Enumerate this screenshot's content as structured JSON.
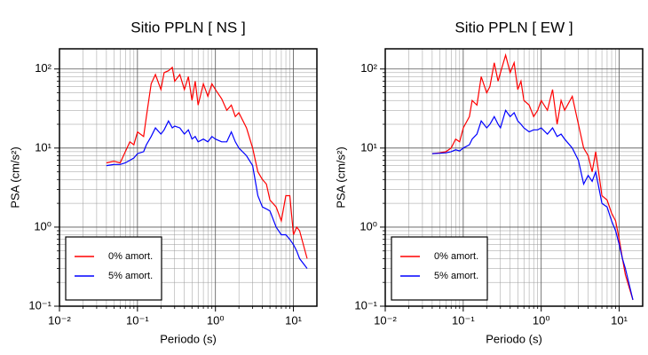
{
  "chart_data": [
    {
      "type": "line",
      "title": "Sitio PPLN [ NS ]",
      "x_label": "Periodo (s)",
      "y_label": "PSA (cm/s²)",
      "xscale": "log",
      "yscale": "log",
      "grid": true,
      "legend": "lower left",
      "xlim": [
        0.01,
        20
      ],
      "ylim": [
        0.1,
        180
      ],
      "xticks": [
        {
          "value": 0.01,
          "label": "10⁻²"
        },
        {
          "value": 0.1,
          "label": "10⁻¹"
        },
        {
          "value": 1,
          "label": "10⁰"
        },
        {
          "value": 10,
          "label": "10¹"
        }
      ],
      "yticks": [
        {
          "value": 0.1,
          "label": "10⁻¹"
        },
        {
          "value": 1,
          "label": "10⁰"
        },
        {
          "value": 10,
          "label": "10¹"
        },
        {
          "value": 100,
          "label": "10²"
        }
      ],
      "x": [
        0.04,
        0.05,
        0.06,
        0.07,
        0.08,
        0.09,
        0.1,
        0.12,
        0.13,
        0.15,
        0.17,
        0.2,
        0.22,
        0.25,
        0.28,
        0.3,
        0.35,
        0.4,
        0.45,
        0.5,
        0.55,
        0.6,
        0.7,
        0.8,
        0.9,
        1.0,
        1.2,
        1.4,
        1.6,
        1.8,
        2.0,
        2.5,
        3.0,
        3.5,
        4,
        4.5,
        5,
        6,
        7,
        8,
        9,
        10,
        11,
        12,
        15
      ],
      "series": [
        {
          "name": "0% amort.",
          "color": "#ff0000",
          "values": [
            6.5,
            6.8,
            6.5,
            9,
            12,
            11,
            16,
            14,
            25,
            65,
            85,
            55,
            90,
            95,
            105,
            70,
            85,
            55,
            80,
            40,
            70,
            35,
            65,
            45,
            65,
            55,
            42,
            30,
            35,
            25,
            28,
            18,
            10,
            5,
            4,
            3.5,
            2.2,
            1.8,
            1.2,
            2.5,
            2.5,
            0.8,
            1.0,
            0.9,
            0.4
          ]
        },
        {
          "name": "5% amort.",
          "color": "#0000ff",
          "values": [
            6,
            6.2,
            6.2,
            6.5,
            7,
            7.5,
            8.5,
            9,
            11,
            14,
            18,
            15,
            17,
            22,
            18,
            19,
            18,
            15,
            17,
            13,
            14,
            12,
            13,
            12,
            14,
            13,
            12,
            12,
            16,
            12,
            10,
            8,
            6,
            2.5,
            1.8,
            1.7,
            1.6,
            1.0,
            0.8,
            0.8,
            0.7,
            0.6,
            0.5,
            0.4,
            0.3
          ]
        }
      ]
    },
    {
      "type": "line",
      "title": "Sitio PPLN [ EW ]",
      "x_label": "Periodo (s)",
      "y_label": "PSA (cm/s²)",
      "xscale": "log",
      "yscale": "log",
      "grid": true,
      "legend": "lower left",
      "xlim": [
        0.01,
        20
      ],
      "ylim": [
        0.1,
        180
      ],
      "xticks": [
        {
          "value": 0.01,
          "label": "10⁻²"
        },
        {
          "value": 0.1,
          "label": "10⁻¹"
        },
        {
          "value": 1,
          "label": "10⁰"
        },
        {
          "value": 10,
          "label": "10¹"
        }
      ],
      "yticks": [
        {
          "value": 0.1,
          "label": "10⁻¹"
        },
        {
          "value": 1,
          "label": "10⁰"
        },
        {
          "value": 10,
          "label": "10¹"
        },
        {
          "value": 100,
          "label": "10²"
        }
      ],
      "x": [
        0.04,
        0.05,
        0.06,
        0.07,
        0.08,
        0.09,
        0.1,
        0.12,
        0.13,
        0.15,
        0.17,
        0.2,
        0.22,
        0.25,
        0.28,
        0.3,
        0.35,
        0.4,
        0.45,
        0.5,
        0.55,
        0.6,
        0.7,
        0.8,
        0.9,
        1.0,
        1.2,
        1.4,
        1.6,
        1.8,
        2.0,
        2.5,
        3.0,
        3.5,
        4,
        4.5,
        5,
        6,
        7,
        8,
        9,
        10,
        11,
        12,
        15
      ],
      "series": [
        {
          "name": "0% amort.",
          "color": "#ff0000",
          "values": [
            8.5,
            8.7,
            9,
            10,
            13,
            12,
            18,
            25,
            40,
            35,
            80,
            50,
            60,
            120,
            70,
            90,
            150,
            90,
            120,
            55,
            70,
            40,
            35,
            25,
            30,
            40,
            30,
            55,
            20,
            40,
            30,
            45,
            20,
            10,
            8,
            5,
            9,
            2.5,
            2.2,
            1.5,
            1.2,
            0.7,
            0.4,
            0.25,
            0.12
          ]
        },
        {
          "name": "5% amort.",
          "color": "#0000ff",
          "values": [
            8.5,
            8.6,
            8.7,
            9,
            9.5,
            9.2,
            10,
            11,
            13,
            15,
            22,
            18,
            20,
            25,
            20,
            18,
            30,
            25,
            28,
            22,
            20,
            18,
            16,
            17,
            17,
            18,
            15,
            18,
            14,
            15,
            13,
            10,
            7,
            3.5,
            4.5,
            3.8,
            5,
            2,
            1.8,
            1.2,
            0.9,
            0.6,
            0.4,
            0.3,
            0.12
          ]
        }
      ]
    }
  ]
}
